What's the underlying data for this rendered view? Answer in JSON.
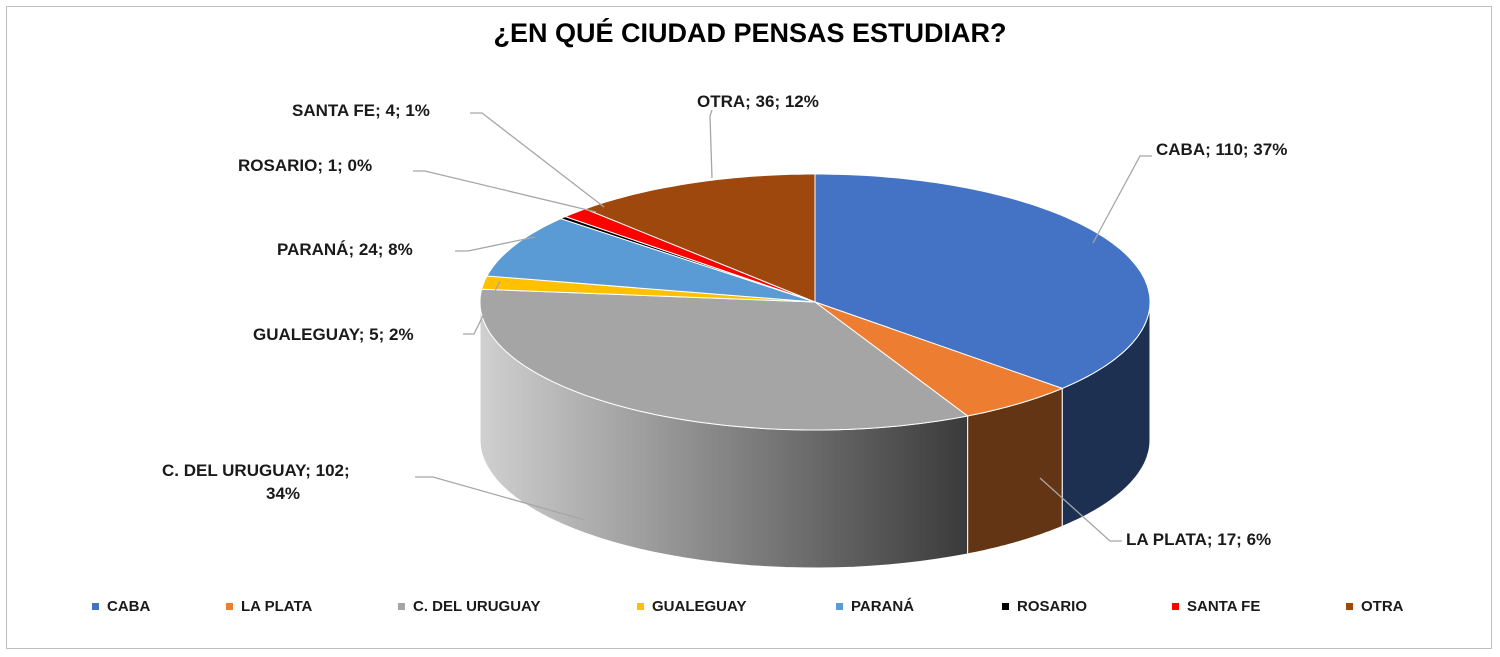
{
  "chart_data": {
    "type": "pie",
    "title": "¿EN QUÉ CIUDAD PENSAS ESTUDIAR?",
    "slices": [
      {
        "name": "CABA",
        "value": 110,
        "percent": "37%",
        "color": "#4472c4"
      },
      {
        "name": "LA PLATA",
        "value": 17,
        "percent": "6%",
        "color": "#ed7d31"
      },
      {
        "name": "C. DEL URUGUAY",
        "value": 102,
        "percent": "34%",
        "color": "#a5a5a5"
      },
      {
        "name": "GUALEGUAY",
        "value": 5,
        "percent": "2%",
        "color": "#ffc000"
      },
      {
        "name": "PARANÁ",
        "value": 24,
        "percent": "8%",
        "color": "#5b9bd5"
      },
      {
        "name": "ROSARIO",
        "value": 1,
        "percent": "0%",
        "color": "#000000"
      },
      {
        "name": "SANTA FE",
        "value": 4,
        "percent": "1%",
        "color": "#ff0000"
      },
      {
        "name": "OTRA",
        "value": 36,
        "percent": "12%",
        "color": "#9e480e"
      }
    ],
    "data_labels": {
      "caba": "CABA;  110; 37%",
      "la_plata": "LA PLATA;  17; 6%",
      "c_del_uruguay_1": "C. DEL URUGUAY;  102;",
      "c_del_uruguay_2": "34%",
      "gualeguay": "GUALEGUAY;  5; 2%",
      "parana": "PARANÁ;  24; 8%",
      "rosario": "ROSARIO;  1; 0%",
      "santa_fe": "SANTA  FE;  4; 1%",
      "otra": "OTRA;  36; 12%"
    },
    "legend": {
      "position": "bottom",
      "items": [
        "CABA",
        "LA PLATA",
        "C. DEL URUGUAY",
        "GUALEGUAY",
        "PARANÁ",
        "ROSARIO",
        "SANTA FE",
        "OTRA"
      ]
    },
    "style": "3d"
  }
}
